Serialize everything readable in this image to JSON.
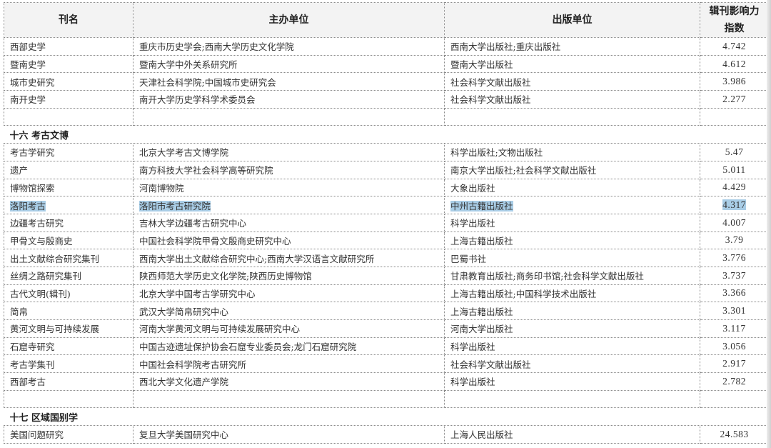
{
  "header": {
    "name": "刊名",
    "sponsor": "主办单位",
    "publisher": "出版单位",
    "index": "辑刊影响力指数"
  },
  "group_top": [
    {
      "name": "西部史学",
      "sponsor": "重庆市历史学会;西南大学历史文化学院",
      "publisher": "西南大学出版社;重庆出版社",
      "index": "4.742"
    },
    {
      "name": "暨南史学",
      "sponsor": "暨南大学中外关系研究所",
      "publisher": "暨南大学出版社",
      "index": "4.612"
    },
    {
      "name": "城市史研究",
      "sponsor": "天津社会科学院;中国城市史研究会",
      "publisher": "社会科学文献出版社",
      "index": "3.986"
    },
    {
      "name": "南开史学",
      "sponsor": "南开大学历史学科学术委员会",
      "publisher": "社会科学文献出版社",
      "index": "2.277"
    }
  ],
  "section16": {
    "title": "十六  考古文博",
    "rows": [
      {
        "name": "考古学研究",
        "sponsor": "北京大学考古文博学院",
        "publisher": "科学出版社;文物出版社",
        "index": "5.47"
      },
      {
        "name": "遗产",
        "sponsor": "南方科技大学社会科学高等研究院",
        "publisher": "南京大学出版社;社会科学文献出版社",
        "index": "5.011"
      },
      {
        "name": "博物馆探索",
        "sponsor": "河南博物院",
        "publisher": "大象出版社",
        "index": "4.429"
      },
      {
        "name": "洛阳考古",
        "sponsor": "洛阳市考古研究院",
        "publisher": "中州古籍出版社",
        "index": "4.317",
        "highlighted": true
      },
      {
        "name": "边疆考古研究",
        "sponsor": "吉林大学边疆考古研究中心",
        "publisher": "科学出版社",
        "index": "4.007"
      },
      {
        "name": "甲骨文与殷商史",
        "sponsor": "中国社会科学院甲骨文殷商史研究中心",
        "publisher": "上海古籍出版社",
        "index": "3.79"
      },
      {
        "name": "出土文献综合研究集刊",
        "sponsor": "西南大学出土文献综合研究中心;西南大学汉语言文献研究所",
        "publisher": "巴蜀书社",
        "index": "3.776"
      },
      {
        "name": "丝绸之路研究集刊",
        "sponsor": "陕西师范大学历史文化学院;陕西历史博物馆",
        "publisher": "甘肃教育出版社;商务印书馆;社会科学文献出版社",
        "index": "3.737"
      },
      {
        "name": "古代文明(辑刊)",
        "sponsor": "北京大学中国考古学研究中心",
        "publisher": "上海古籍出版社;中国科学技术出版社",
        "index": "3.366"
      },
      {
        "name": "简帛",
        "sponsor": "武汉大学简帛研究中心",
        "publisher": "上海古籍出版社",
        "index": "3.301"
      },
      {
        "name": "黄河文明与可持续发展",
        "sponsor": "河南大学黄河文明与可持续发展研究中心",
        "publisher": "河南大学出版社",
        "index": "3.117"
      },
      {
        "name": "石窟寺研究",
        "sponsor": "中国古迹遗址保护协会石窟专业委员会;龙门石窟研究院",
        "publisher": "科学出版社",
        "index": "3.056"
      },
      {
        "name": "考古学集刊",
        "sponsor": "中国社会科学院考古研究所",
        "publisher": "社会科学文献出版社",
        "index": "2.917"
      },
      {
        "name": "西部考古",
        "sponsor": "西北大学文化遗产学院",
        "publisher": "科学出版社",
        "index": "2.782"
      }
    ]
  },
  "section17": {
    "title": "十七  区域国别学",
    "rows": [
      {
        "name": "美国问题研究",
        "sponsor": "复旦大学美国研究中心",
        "publisher": "上海人民出版社",
        "index": "24.583"
      }
    ]
  },
  "colors": {
    "highlight": "#a9cde6"
  }
}
